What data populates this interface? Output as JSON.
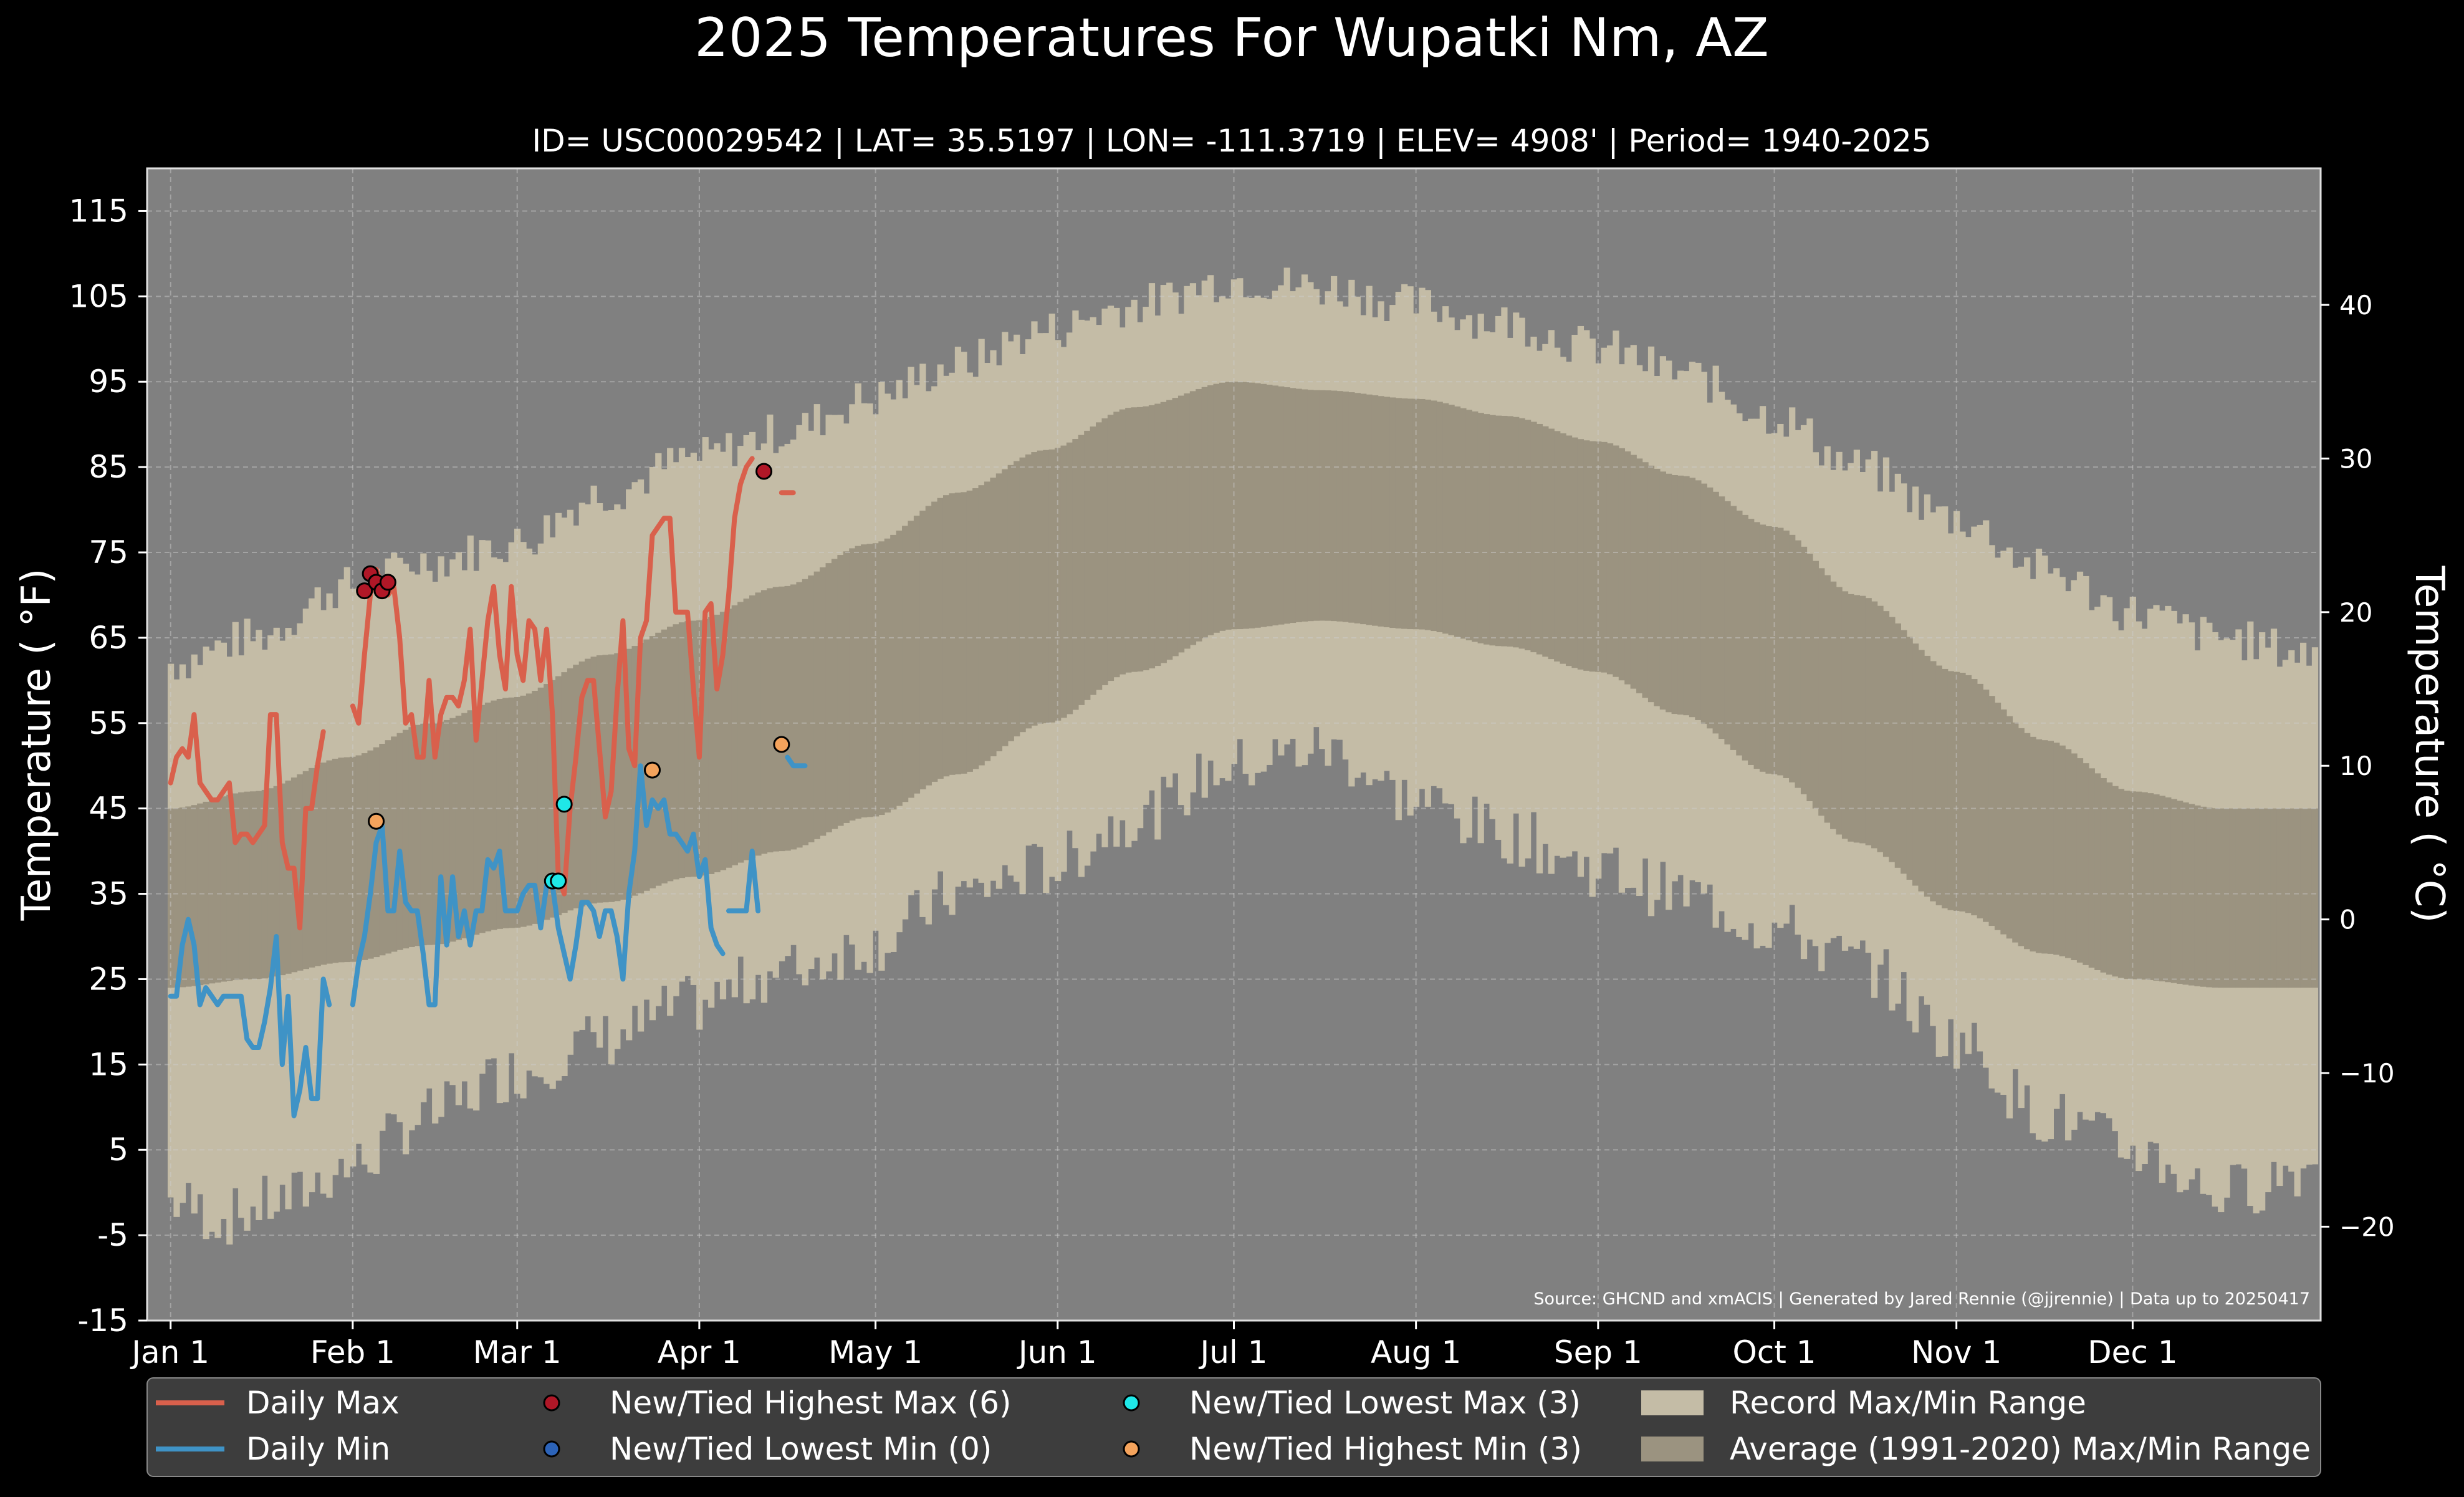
{
  "chart_data": {
    "type": "line",
    "title": "2025 Temperatures For Wupatki Nm, AZ",
    "subtitle": "ID= USC00029542 | LAT= 35.5197 | LON= -111.3719 | ELEV= 4908' | Period= 1940-2025",
    "ylabel": "Temperature ( °F)",
    "ylabel_right": "Temperature ( °C)",
    "source": "Source: GHCND and xmACIS | Generated by Jared Rennie (@jjrennie) | Data up to 20250417",
    "ylim": [
      -15,
      120
    ],
    "yticks": [
      115,
      105,
      95,
      85,
      75,
      65,
      55,
      45,
      35,
      25,
      15,
      5,
      -5,
      -15
    ],
    "yticks_c": [
      40,
      30,
      20,
      10,
      0,
      -10,
      -20
    ],
    "x_range": [
      -3,
      367
    ],
    "xticks": [
      {
        "day": 1,
        "label": "Jan 1"
      },
      {
        "day": 32,
        "label": "Feb 1"
      },
      {
        "day": 60,
        "label": "Mar 1"
      },
      {
        "day": 91,
        "label": "Apr 1"
      },
      {
        "day": 121,
        "label": "May 1"
      },
      {
        "day": 152,
        "label": "Jun 1"
      },
      {
        "day": 182,
        "label": "Jul 1"
      },
      {
        "day": 213,
        "label": "Aug 1"
      },
      {
        "day": 244,
        "label": "Sep 1"
      },
      {
        "day": 274,
        "label": "Oct 1"
      },
      {
        "day": 305,
        "label": "Nov 1"
      },
      {
        "day": 335,
        "label": "Dec 1"
      }
    ],
    "grid": true,
    "legend_position": "bottom",
    "colors": {
      "background": "#000000",
      "plot_bg": "#808080",
      "record_range": "#c4bca6",
      "avg_range": "#9b9380",
      "daily_max": "#d9604c",
      "daily_min": "#3f93c6",
      "highest_max": "#b01727",
      "lowest_min": "#2c63b8",
      "lowest_max": "#1fe8e8",
      "highest_min": "#f4a35c"
    },
    "record_max_anchors": [
      [
        1,
        62
      ],
      [
        15,
        65
      ],
      [
        31,
        71
      ],
      [
        45,
        74
      ],
      [
        59,
        76
      ],
      [
        75,
        82
      ],
      [
        90,
        86
      ],
      [
        105,
        89
      ],
      [
        120,
        93
      ],
      [
        135,
        97
      ],
      [
        150,
        101
      ],
      [
        165,
        104
      ],
      [
        182,
        107
      ],
      [
        198,
        106
      ],
      [
        213,
        104
      ],
      [
        228,
        102
      ],
      [
        244,
        99
      ],
      [
        258,
        96
      ],
      [
        274,
        91
      ],
      [
        288,
        85
      ],
      [
        305,
        79
      ],
      [
        320,
        73
      ],
      [
        335,
        68
      ],
      [
        350,
        65
      ],
      [
        366,
        63
      ]
    ],
    "record_min_anchors": [
      [
        1,
        -1
      ],
      [
        10,
        -3
      ],
      [
        20,
        -1
      ],
      [
        31,
        3
      ],
      [
        45,
        9
      ],
      [
        59,
        14
      ],
      [
        75,
        18
      ],
      [
        90,
        22
      ],
      [
        105,
        26
      ],
      [
        120,
        29
      ],
      [
        135,
        35
      ],
      [
        150,
        38
      ],
      [
        165,
        44
      ],
      [
        182,
        50
      ],
      [
        197,
        52
      ],
      [
        213,
        46
      ],
      [
        228,
        42
      ],
      [
        244,
        38
      ],
      [
        258,
        35
      ],
      [
        274,
        31
      ],
      [
        288,
        27
      ],
      [
        305,
        18
      ],
      [
        320,
        9
      ],
      [
        335,
        5
      ],
      [
        350,
        0
      ],
      [
        366,
        3
      ]
    ],
    "avg_max_anchors": [
      [
        1,
        45
      ],
      [
        15,
        47
      ],
      [
        31,
        51
      ],
      [
        45,
        55
      ],
      [
        59,
        58
      ],
      [
        75,
        63
      ],
      [
        90,
        67
      ],
      [
        105,
        71
      ],
      [
        120,
        76
      ],
      [
        135,
        82
      ],
      [
        150,
        87
      ],
      [
        165,
        92
      ],
      [
        182,
        95
      ],
      [
        197,
        94
      ],
      [
        213,
        93
      ],
      [
        228,
        91
      ],
      [
        244,
        88
      ],
      [
        258,
        84
      ],
      [
        274,
        78
      ],
      [
        288,
        70
      ],
      [
        305,
        61
      ],
      [
        320,
        53
      ],
      [
        335,
        47
      ],
      [
        350,
        45
      ],
      [
        366,
        45
      ]
    ],
    "avg_min_anchors": [
      [
        1,
        24
      ],
      [
        15,
        25
      ],
      [
        31,
        27
      ],
      [
        45,
        29
      ],
      [
        59,
        31
      ],
      [
        75,
        34
      ],
      [
        90,
        37
      ],
      [
        105,
        40
      ],
      [
        120,
        44
      ],
      [
        135,
        49
      ],
      [
        150,
        55
      ],
      [
        165,
        61
      ],
      [
        182,
        66
      ],
      [
        197,
        67
      ],
      [
        213,
        66
      ],
      [
        228,
        64
      ],
      [
        244,
        61
      ],
      [
        258,
        56
      ],
      [
        274,
        49
      ],
      [
        288,
        41
      ],
      [
        305,
        33
      ],
      [
        320,
        28
      ],
      [
        335,
        25
      ],
      [
        350,
        24
      ],
      [
        366,
        24
      ]
    ],
    "series": [
      {
        "name": "Daily Max",
        "segments": [
          {
            "start": 1,
            "values": [
              48,
              51,
              52,
              51,
              56,
              48,
              47,
              46,
              46,
              47,
              48,
              41,
              42,
              42,
              41,
              42,
              43,
              56,
              56,
              41,
              38,
              38,
              31,
              45,
              45,
              50,
              54
            ]
          },
          {
            "start": 32,
            "values": [
              57,
              55,
              63,
              70,
              73,
              71,
              70,
              71,
              65,
              55,
              56,
              51,
              51,
              60,
              51,
              56,
              58,
              58,
              57,
              60,
              66,
              53,
              60,
              67,
              71,
              63,
              59,
              71,
              63,
              60,
              67,
              66,
              60,
              66,
              56,
              37,
              35,
              45,
              51,
              58,
              60,
              60,
              52,
              44,
              47,
              58,
              67,
              52,
              50,
              65,
              67,
              77,
              78,
              79,
              79,
              68,
              68,
              68,
              59,
              51,
              68,
              69,
              59,
              63,
              70,
              79,
              83,
              85,
              86
            ]
          },
          {
            "start": 105,
            "values": [
              82,
              82,
              82
            ]
          }
        ]
      },
      {
        "name": "Daily Min",
        "segments": [
          {
            "start": 1,
            "values": [
              23,
              23,
              29,
              32,
              29,
              22,
              24,
              23,
              22,
              23,
              23,
              23,
              23,
              18,
              17,
              17,
              20,
              24,
              30,
              15,
              23,
              9,
              12,
              17,
              11,
              11,
              25,
              22
            ]
          },
          {
            "start": 32,
            "values": [
              22,
              27,
              30,
              35,
              41,
              43,
              33,
              33,
              40,
              34,
              33,
              33,
              28,
              22,
              22,
              37,
              29,
              37,
              30,
              33,
              29,
              33,
              33,
              39,
              38,
              40,
              33,
              33,
              33,
              35,
              36,
              36,
              31,
              36,
              36,
              31,
              28,
              25,
              29,
              34,
              34,
              33,
              30,
              33,
              33,
              30,
              25,
              35,
              40,
              50,
              43,
              46,
              45,
              46,
              42,
              42,
              41,
              40,
              42,
              37,
              39,
              31,
              29,
              28
            ]
          },
          {
            "start": 96,
            "values": [
              33,
              33,
              33,
              33,
              40,
              33
            ]
          },
          {
            "start": 106,
            "values": [
              51,
              50,
              50,
              50
            ]
          }
        ]
      }
    ],
    "record_points": {
      "highest_max": [
        [
          34,
          70.5
        ],
        [
          35,
          72.5
        ],
        [
          36,
          71.5
        ],
        [
          37,
          70.5
        ],
        [
          38,
          71.5
        ],
        [
          102,
          84.5
        ]
      ],
      "lowest_max": [
        [
          66,
          36.5
        ],
        [
          67,
          36.5
        ],
        [
          68,
          45.5
        ]
      ],
      "highest_min": [
        [
          36,
          43.5
        ],
        [
          83,
          49.5
        ],
        [
          105,
          52.5
        ]
      ],
      "lowest_min": []
    },
    "legend": [
      {
        "label": "Daily Max",
        "kind": "line",
        "color_key": "daily_max"
      },
      {
        "label": "Daily Min",
        "kind": "line",
        "color_key": "daily_min"
      },
      {
        "label": "New/Tied Highest Max (6)",
        "kind": "marker",
        "color_key": "highest_max"
      },
      {
        "label": "New/Tied Lowest Min (0)",
        "kind": "marker",
        "color_key": "lowest_min"
      },
      {
        "label": "New/Tied Lowest Max (3)",
        "kind": "marker",
        "color_key": "lowest_max"
      },
      {
        "label": "New/Tied Highest Min (3)",
        "kind": "marker",
        "color_key": "highest_min"
      },
      {
        "label": "Record Max/Min Range",
        "kind": "patch",
        "color_key": "record_range"
      },
      {
        "label": "Average (1991-2020) Max/Min Range",
        "kind": "patch",
        "color_key": "avg_range"
      }
    ]
  }
}
